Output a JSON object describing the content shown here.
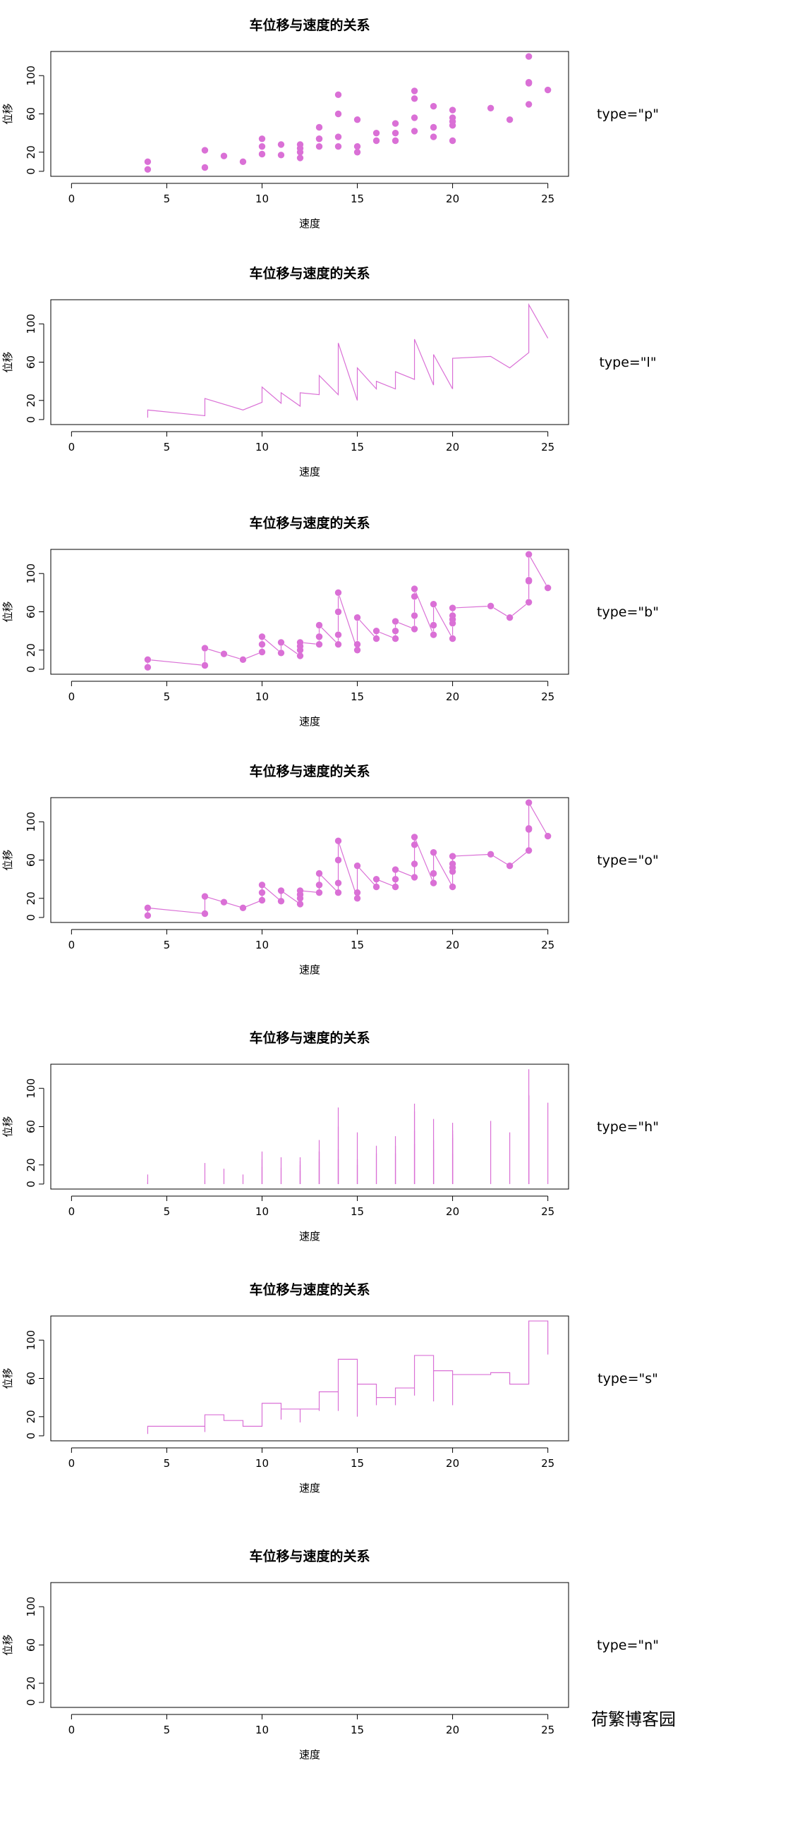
{
  "watermark": "荷繁博客园",
  "style": {
    "series_color": "#DA70D6",
    "axis_color": "#000000"
  },
  "chart_data": [
    {
      "type": "scatter",
      "plot_type": "p",
      "type_label": "type=\"p\"",
      "title": "车位移与速度的关系",
      "xlabel": "速度",
      "ylabel": "位移",
      "xlim": [
        0,
        25
      ],
      "ylim": [
        0,
        120
      ],
      "xticks": [
        0,
        5,
        10,
        15,
        20,
        25
      ],
      "yticks": [
        0,
        20,
        60,
        100
      ],
      "grid": false,
      "data_ref": "cars"
    },
    {
      "type": "line",
      "plot_type": "l",
      "type_label": "type=\"l\"",
      "title": "车位移与速度的关系",
      "xlabel": "速度",
      "ylabel": "位移",
      "xlim": [
        0,
        25
      ],
      "ylim": [
        0,
        120
      ],
      "xticks": [
        0,
        5,
        10,
        15,
        20,
        25
      ],
      "yticks": [
        0,
        20,
        60,
        100
      ],
      "grid": false,
      "data_ref": "cars"
    },
    {
      "type": "line",
      "plot_type": "b",
      "type_label": "type=\"b\"",
      "title": "车位移与速度的关系",
      "xlabel": "速度",
      "ylabel": "位移",
      "xlim": [
        0,
        25
      ],
      "ylim": [
        0,
        120
      ],
      "xticks": [
        0,
        5,
        10,
        15,
        20,
        25
      ],
      "yticks": [
        0,
        20,
        60,
        100
      ],
      "grid": false,
      "data_ref": "cars"
    },
    {
      "type": "line",
      "plot_type": "o",
      "type_label": "type=\"o\"",
      "title": "车位移与速度的关系",
      "xlabel": "速度",
      "ylabel": "位移",
      "xlim": [
        0,
        25
      ],
      "ylim": [
        0,
        120
      ],
      "xticks": [
        0,
        5,
        10,
        15,
        20,
        25
      ],
      "yticks": [
        0,
        20,
        60,
        100
      ],
      "grid": false,
      "data_ref": "cars"
    },
    {
      "type": "bar",
      "plot_type": "h",
      "type_label": "type=\"h\"",
      "title": "车位移与速度的关系",
      "xlabel": "速度",
      "ylabel": "位移",
      "xlim": [
        0,
        25
      ],
      "ylim": [
        0,
        120
      ],
      "xticks": [
        0,
        5,
        10,
        15,
        20,
        25
      ],
      "yticks": [
        0,
        20,
        60,
        100
      ],
      "grid": false,
      "data_ref": "cars"
    },
    {
      "type": "line",
      "plot_type": "s",
      "type_label": "type=\"s\"",
      "title": "车位移与速度的关系",
      "xlabel": "速度",
      "ylabel": "位移",
      "xlim": [
        0,
        25
      ],
      "ylim": [
        0,
        120
      ],
      "xticks": [
        0,
        5,
        10,
        15,
        20,
        25
      ],
      "yticks": [
        0,
        20,
        60,
        100
      ],
      "grid": false,
      "data_ref": "cars"
    },
    {
      "type": "scatter",
      "plot_type": "n",
      "type_label": "type=\"n\"",
      "title": "车位移与速度的关系",
      "xlabel": "速度",
      "ylabel": "位移",
      "xlim": [
        0,
        25
      ],
      "ylim": [
        0,
        120
      ],
      "xticks": [
        0,
        5,
        10,
        15,
        20,
        25
      ],
      "yticks": [
        0,
        20,
        60,
        100
      ],
      "grid": false,
      "data_ref": "cars"
    }
  ],
  "cars": {
    "speed": [
      4,
      4,
      7,
      7,
      8,
      9,
      10,
      10,
      10,
      11,
      11,
      12,
      12,
      12,
      12,
      13,
      13,
      13,
      13,
      14,
      14,
      14,
      14,
      15,
      15,
      15,
      16,
      16,
      17,
      17,
      17,
      18,
      18,
      18,
      18,
      19,
      19,
      19,
      20,
      20,
      20,
      20,
      20,
      22,
      23,
      24,
      24,
      24,
      24,
      25
    ],
    "dist": [
      2,
      10,
      4,
      22,
      16,
      10,
      18,
      26,
      34,
      17,
      28,
      14,
      20,
      24,
      28,
      26,
      34,
      34,
      46,
      26,
      36,
      60,
      80,
      20,
      26,
      54,
      32,
      40,
      32,
      40,
      50,
      42,
      56,
      76,
      84,
      36,
      46,
      68,
      32,
      48,
      52,
      56,
      64,
      66,
      54,
      70,
      92,
      93,
      120,
      85
    ]
  }
}
